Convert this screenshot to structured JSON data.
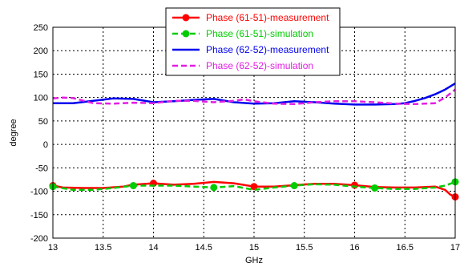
{
  "chart_data": {
    "type": "line",
    "title": "",
    "xlabel": "GHz",
    "ylabel": "degree",
    "xlim": [
      13,
      17
    ],
    "ylim": [
      -200,
      250
    ],
    "xticks": [
      13,
      13.5,
      14,
      14.5,
      15,
      15.5,
      16,
      16.5,
      17
    ],
    "xtick_labels": [
      "13",
      "13.5",
      "14",
      "14.5",
      "15",
      "15.5",
      "16",
      "16.5",
      "17"
    ],
    "yticks": [
      -200,
      -150,
      -100,
      -50,
      0,
      50,
      100,
      150,
      200,
      250
    ],
    "ytick_labels": [
      "-200",
      "-150",
      "-100",
      "-50",
      "0",
      "50",
      "100",
      "150",
      "200",
      "250"
    ],
    "grid": true,
    "legend_position": "top-center",
    "series": [
      {
        "name": "Phase (61-51)-measurement",
        "color": "#ff0000",
        "dash": "solid",
        "marker": "circle",
        "x": [
          13.0,
          13.1,
          13.3,
          13.5,
          13.7,
          13.8,
          14.0,
          14.2,
          14.4,
          14.6,
          14.8,
          15.0,
          15.2,
          15.4,
          15.6,
          15.8,
          16.0,
          16.2,
          16.4,
          16.6,
          16.8,
          16.9,
          16.95,
          17.0
        ],
        "y": [
          -88,
          -92,
          -93,
          -93,
          -90,
          -86,
          -83,
          -86,
          -84,
          -80,
          -83,
          -90,
          -90,
          -87,
          -84,
          -84,
          -87,
          -91,
          -92,
          -92,
          -90,
          -97,
          -107,
          -112
        ],
        "markers_x": [
          13.0,
          14.0,
          15.0,
          16.0,
          17.0
        ],
        "markers_y": [
          -88,
          -83,
          -90,
          -87,
          -112
        ]
      },
      {
        "name": "Phase (61-51)-simulation",
        "color": "#00cc00",
        "dash": "dashed",
        "marker": "circle",
        "x": [
          13.0,
          13.2,
          13.4,
          13.6,
          13.8,
          14.0,
          14.2,
          14.4,
          14.6,
          14.8,
          15.0,
          15.2,
          15.4,
          15.6,
          15.8,
          16.0,
          16.2,
          16.4,
          16.6,
          16.8,
          16.9,
          17.0
        ],
        "y": [
          -90,
          -97,
          -97,
          -93,
          -88,
          -88,
          -88,
          -90,
          -92,
          -89,
          -97,
          -92,
          -88,
          -85,
          -86,
          -90,
          -93,
          -95,
          -95,
          -92,
          -88,
          -80
        ],
        "markers_x": [
          13.0,
          13.8,
          14.6,
          15.4,
          16.2,
          17.0
        ],
        "markers_y": [
          -90,
          -88,
          -92,
          -88,
          -93,
          -80
        ]
      },
      {
        "name": "Phase (62-52)-measurement",
        "color": "#0000ee",
        "dash": "solid",
        "marker": "none",
        "x": [
          13.0,
          13.2,
          13.4,
          13.6,
          13.8,
          14.0,
          14.2,
          14.4,
          14.6,
          14.8,
          15.0,
          15.2,
          15.4,
          15.6,
          15.8,
          16.0,
          16.2,
          16.4,
          16.5,
          16.6,
          16.7,
          16.8,
          16.9,
          17.0
        ],
        "y": [
          88,
          88,
          93,
          98,
          97,
          90,
          92,
          95,
          97,
          90,
          87,
          88,
          92,
          90,
          87,
          85,
          85,
          86,
          88,
          93,
          99,
          107,
          117,
          130
        ],
        "markers_x": [],
        "markers_y": []
      },
      {
        "name": "Phase (62-52)-simulation",
        "color": "#e21ee2",
        "dash": "dashed",
        "marker": "none",
        "x": [
          13.0,
          13.1,
          13.2,
          13.4,
          13.6,
          13.8,
          14.0,
          14.2,
          14.4,
          14.6,
          14.8,
          14.9,
          15.0,
          15.2,
          15.4,
          15.6,
          15.8,
          16.0,
          16.2,
          16.4,
          16.6,
          16.8,
          16.9,
          17.0
        ],
        "y": [
          98,
          100,
          99,
          88,
          87,
          89,
          88,
          93,
          93,
          90,
          93,
          96,
          92,
          87,
          86,
          90,
          92,
          92,
          90,
          87,
          86,
          88,
          100,
          117
        ],
        "markers_x": [],
        "markers_y": []
      }
    ]
  }
}
